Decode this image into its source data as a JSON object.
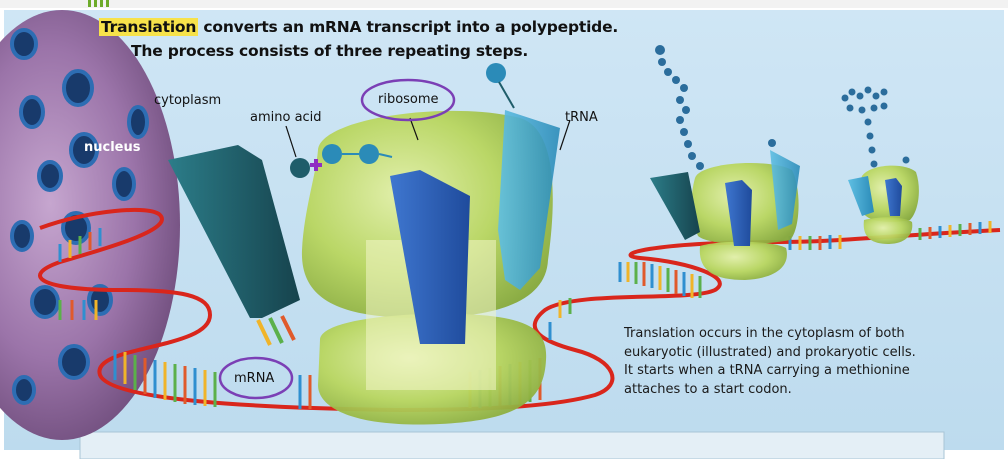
{
  "title": {
    "highlight": "Translation",
    "line1_rest": " converts an mRNA transcript into a polypeptide.",
    "line2": "The process consists of three repeating steps."
  },
  "labels": {
    "nucleus": "nucleus",
    "cytoplasm": "cytoplasm",
    "amino_acid": "amino acid",
    "ribosome": "ribosome",
    "trna": "tRNA",
    "mrna": "mRNA"
  },
  "caption": [
    "Translation occurs in the cytoplasm of both",
    "eukaryotic (illustrated) and prokaryotic cells.",
    "It starts when a tRNA carrying a methionine",
    "attaches to a start codon."
  ],
  "colors": {
    "background": "#c9e2f2",
    "ribosome": "#b6d65a",
    "trna_dark": "#1f5d6a",
    "trna_light": "#3fa6cf",
    "trna_blue": "#2f5fb3",
    "mrna_strand": "#d9261c",
    "nucleus": "#a982b4",
    "circle_highlight": "#7b3fb5",
    "title_highlight": "#f7e24a"
  }
}
